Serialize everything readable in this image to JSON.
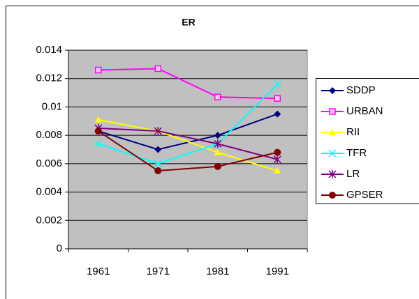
{
  "chart_data": {
    "type": "line",
    "title": "ER",
    "categories": [
      "1961",
      "1971",
      "1981",
      "1991"
    ],
    "series": [
      {
        "name": "SDDP",
        "color": "#000080",
        "marker": "diamond",
        "values": [
          0.0083,
          0.007,
          0.008,
          0.0095
        ]
      },
      {
        "name": "URBAN",
        "color": "#ff00ff",
        "marker": "square",
        "values": [
          0.0126,
          0.0127,
          0.0107,
          0.0106
        ]
      },
      {
        "name": "RII",
        "color": "#ffff00",
        "marker": "triangle",
        "values": [
          0.0091,
          0.0083,
          0.0068,
          0.0055
        ]
      },
      {
        "name": "TFR",
        "color": "#00ffff",
        "marker": "x",
        "values": [
          0.0074,
          0.006,
          0.0074,
          0.0116
        ]
      },
      {
        "name": "LR",
        "color": "#800080",
        "marker": "star",
        "values": [
          0.0085,
          0.0083,
          0.0074,
          0.0063
        ]
      },
      {
        "name": "GPSER",
        "color": "#800000",
        "marker": "circle",
        "values": [
          0.0083,
          0.0055,
          0.0058,
          0.0068
        ]
      }
    ],
    "ylim": [
      0,
      0.014
    ],
    "yticks": [
      0,
      0.002,
      0.004,
      0.006,
      0.008,
      0.01,
      0.012,
      0.014
    ],
    "grid": true,
    "plot_background": "#c0c0c0",
    "legend": "right"
  }
}
